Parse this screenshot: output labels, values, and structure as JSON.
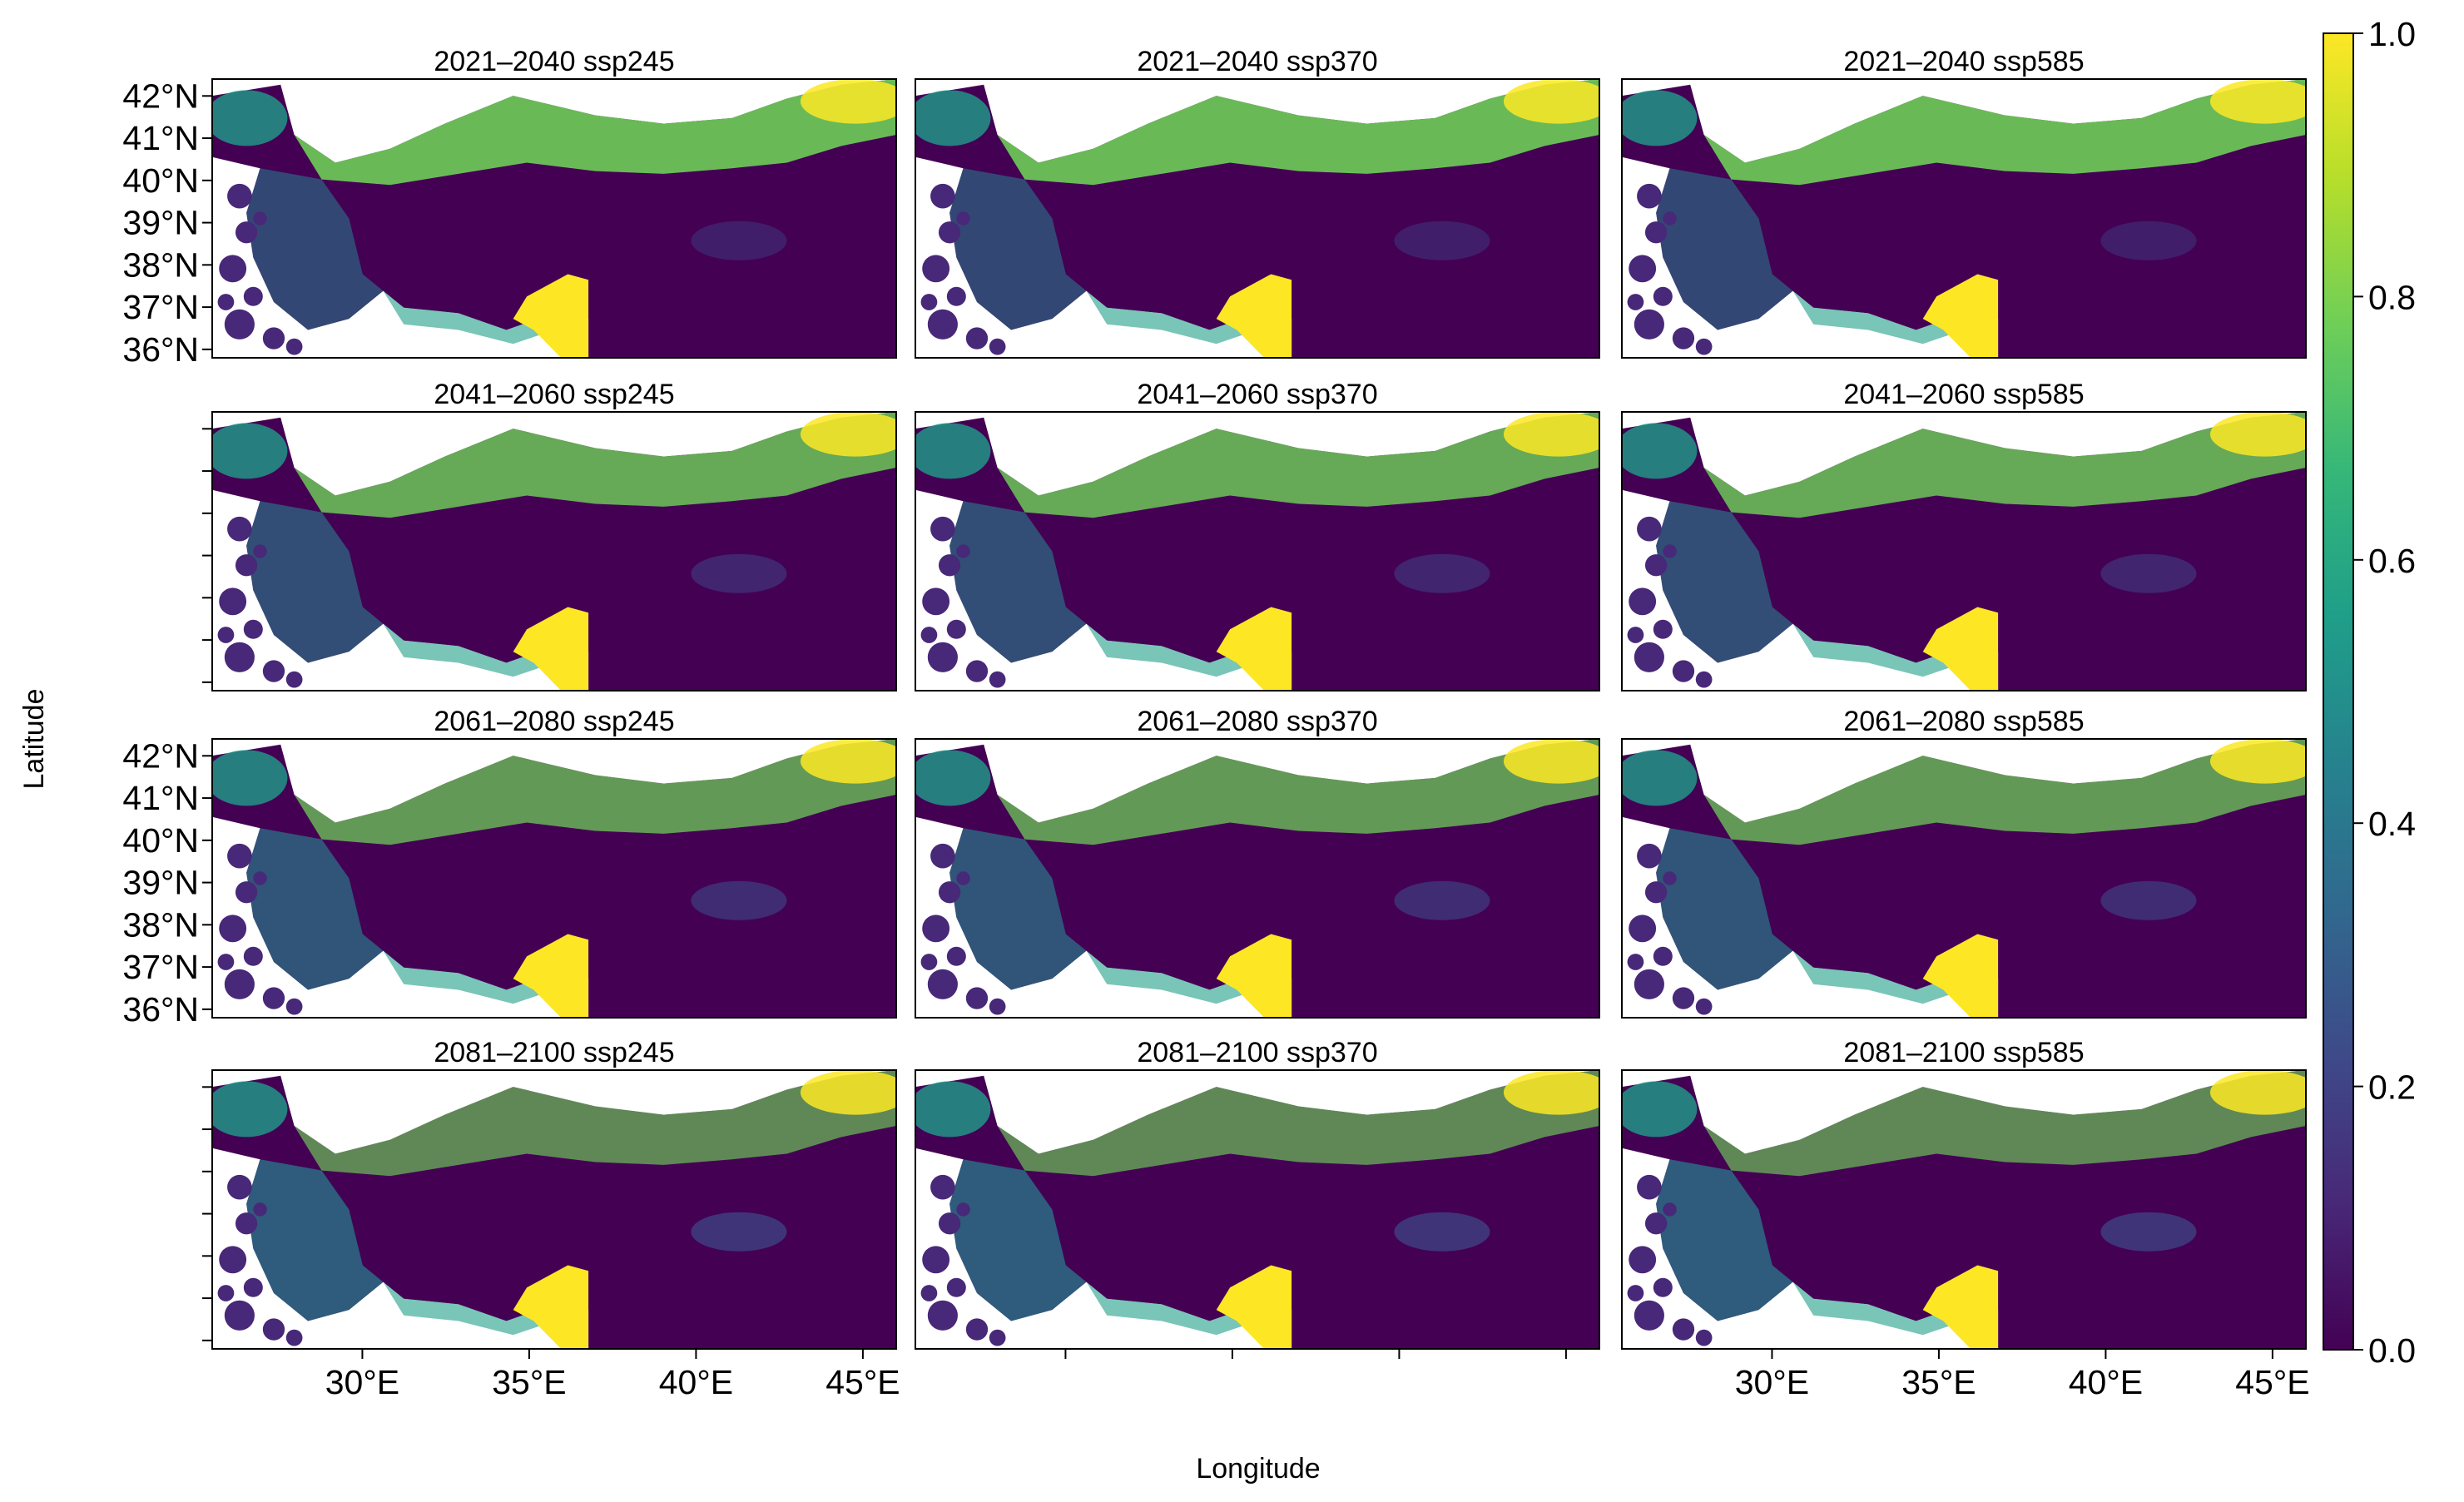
{
  "figure": {
    "xlabel": "Longitude",
    "ylabel": "Latitude"
  },
  "panels": [
    {
      "period": "2021–2040",
      "scenario": "ssp245",
      "title": "2021–2040 ssp245"
    },
    {
      "period": "2021–2040",
      "scenario": "ssp370",
      "title": "2021–2040 ssp370"
    },
    {
      "period": "2021–2040",
      "scenario": "ssp585",
      "title": "2021–2040 ssp585"
    },
    {
      "period": "2041–2060",
      "scenario": "ssp245",
      "title": "2041–2060 ssp245"
    },
    {
      "period": "2041–2060",
      "scenario": "ssp370",
      "title": "2041–2060 ssp370"
    },
    {
      "period": "2041–2060",
      "scenario": "ssp585",
      "title": "2041–2060 ssp585"
    },
    {
      "period": "2061–2080",
      "scenario": "ssp245",
      "title": "2061–2080 ssp245"
    },
    {
      "period": "2061–2080",
      "scenario": "ssp370",
      "title": "2061–2080 ssp370"
    },
    {
      "period": "2061–2080",
      "scenario": "ssp585",
      "title": "2061–2080 ssp585"
    },
    {
      "period": "2081–2100",
      "scenario": "ssp245",
      "title": "2081–2100 ssp245"
    },
    {
      "period": "2081–2100",
      "scenario": "ssp370",
      "title": "2081–2100 ssp370"
    },
    {
      "period": "2081–2100",
      "scenario": "ssp585",
      "title": "2081–2100 ssp585"
    }
  ],
  "map_extent": {
    "lon": [
      25.5,
      46.0
    ],
    "lat": [
      35.8,
      42.4
    ]
  },
  "lon_ticks": [
    {
      "value": 30,
      "label": "30°E"
    },
    {
      "value": 35,
      "label": "35°E"
    },
    {
      "value": 40,
      "label": "40°E"
    },
    {
      "value": 45,
      "label": "45°E"
    }
  ],
  "lat_ticks": [
    {
      "value": 42,
      "label": "42°N"
    },
    {
      "value": 41,
      "label": "41°N"
    },
    {
      "value": 40,
      "label": "40°N"
    },
    {
      "value": 39,
      "label": "39°N"
    },
    {
      "value": 38,
      "label": "38°N"
    },
    {
      "value": 37,
      "label": "37°N"
    },
    {
      "value": 36,
      "label": "36°N"
    }
  ],
  "colorbar": {
    "range": [
      0.0,
      1.0
    ],
    "ticks": [
      {
        "value": 0.0,
        "label": "0.0"
      },
      {
        "value": 0.2,
        "label": "0.2"
      },
      {
        "value": 0.4,
        "label": "0.4"
      },
      {
        "value": 0.6,
        "label": "0.6"
      },
      {
        "value": 0.8,
        "label": "0.8"
      },
      {
        "value": 1.0,
        "label": "1.0"
      }
    ],
    "palette": [
      "#440154",
      "#482878",
      "#3e4a89",
      "#31688e",
      "#26828e",
      "#1f9e89",
      "#35b779",
      "#6ece58",
      "#b5de2b",
      "#fde725"
    ]
  },
  "colors": {
    "land_low": "#440154",
    "sea": "#ffffff",
    "high_suitability": "#fde725"
  }
}
